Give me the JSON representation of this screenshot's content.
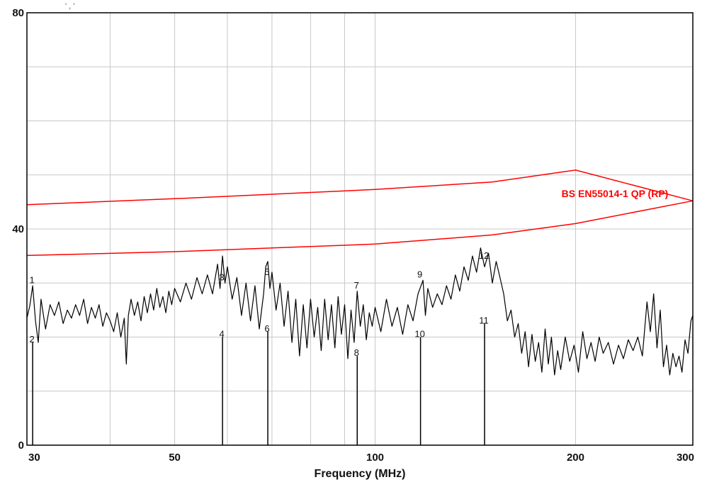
{
  "header": {
    "stray_text": "' ,  '"
  },
  "chart_data": {
    "type": "line",
    "title": "",
    "xlabel": "Frequency (MHz)",
    "ylabel": "",
    "x_scale": "log",
    "xlim": [
      30,
      300
    ],
    "ylim": [
      0,
      80
    ],
    "grid": true,
    "x_ticks": [
      30,
      50,
      100,
      200,
      300
    ],
    "y_ticks": [
      0,
      40,
      80
    ],
    "x_gridlines": [
      30,
      40,
      50,
      60,
      70,
      80,
      90,
      100,
      200,
      300
    ],
    "y_gridlines": [
      0,
      10,
      20,
      30,
      40,
      50,
      60,
      70,
      80
    ],
    "colors": {
      "trace": "#000000",
      "limit": "#ff0000",
      "grid": "#c8c8c8",
      "axis": "#000000"
    },
    "limit_line": {
      "label": "BS EN55014-1 QP (RP)",
      "upper": [
        [
          30,
          44.5
        ],
        [
          50,
          45.6
        ],
        [
          100,
          47.3
        ],
        [
          150,
          48.7
        ],
        [
          200,
          50.9
        ],
        [
          300,
          45.2
        ]
      ],
      "lower": [
        [
          30,
          35.1
        ],
        [
          50,
          35.8
        ],
        [
          100,
          37.2
        ],
        [
          150,
          38.9
        ],
        [
          200,
          41.0
        ],
        [
          300,
          45.2
        ]
      ]
    },
    "series": [
      {
        "values": [
          [
            30.0,
            23.5
          ],
          [
            30.3,
            25.8
          ],
          [
            30.6,
            29.5
          ],
          [
            30.9,
            23.0
          ],
          [
            31.2,
            19.0
          ],
          [
            31.5,
            27.0
          ],
          [
            32.0,
            21.5
          ],
          [
            32.5,
            26.0
          ],
          [
            33.0,
            24.0
          ],
          [
            33.5,
            26.5
          ],
          [
            34.0,
            22.5
          ],
          [
            34.5,
            25.0
          ],
          [
            35.0,
            23.5
          ],
          [
            35.5,
            26.0
          ],
          [
            36.0,
            24.0
          ],
          [
            36.5,
            27.0
          ],
          [
            37.0,
            22.5
          ],
          [
            37.5,
            25.5
          ],
          [
            38.0,
            23.5
          ],
          [
            38.5,
            26.0
          ],
          [
            39.0,
            22.0
          ],
          [
            39.5,
            24.5
          ],
          [
            40.0,
            23.0
          ],
          [
            40.5,
            21.0
          ],
          [
            41.0,
            24.5
          ],
          [
            41.5,
            20.0
          ],
          [
            42.0,
            23.5
          ],
          [
            42.3,
            15.0
          ],
          [
            42.6,
            24.0
          ],
          [
            43.0,
            27.0
          ],
          [
            43.5,
            24.0
          ],
          [
            44.0,
            26.5
          ],
          [
            44.5,
            23.0
          ],
          [
            45.0,
            27.5
          ],
          [
            45.5,
            24.5
          ],
          [
            46.0,
            28.0
          ],
          [
            46.5,
            25.0
          ],
          [
            47.0,
            29.0
          ],
          [
            47.5,
            25.5
          ],
          [
            48.0,
            27.5
          ],
          [
            48.5,
            24.5
          ],
          [
            49.0,
            28.5
          ],
          [
            49.5,
            26.0
          ],
          [
            50.0,
            29.0
          ],
          [
            51.0,
            26.5
          ],
          [
            52.0,
            30.0
          ],
          [
            53.0,
            27.0
          ],
          [
            54.0,
            31.0
          ],
          [
            55.0,
            28.0
          ],
          [
            56.0,
            31.5
          ],
          [
            57.0,
            28.0
          ],
          [
            58.0,
            33.5
          ],
          [
            58.5,
            29.0
          ],
          [
            59.0,
            35.0
          ],
          [
            59.5,
            30.0
          ],
          [
            60.0,
            33.0
          ],
          [
            61.0,
            27.0
          ],
          [
            62.0,
            31.0
          ],
          [
            63.0,
            24.0
          ],
          [
            64.0,
            30.0
          ],
          [
            65.0,
            23.0
          ],
          [
            66.0,
            29.5
          ],
          [
            67.0,
            21.5
          ],
          [
            68.0,
            28.0
          ],
          [
            68.5,
            33.0
          ],
          [
            69.0,
            34.0
          ],
          [
            69.5,
            29.0
          ],
          [
            70.0,
            32.0
          ],
          [
            71.0,
            25.0
          ],
          [
            72.0,
            30.0
          ],
          [
            73.0,
            22.0
          ],
          [
            74.0,
            28.5
          ],
          [
            75.0,
            19.0
          ],
          [
            76.0,
            27.0
          ],
          [
            77.0,
            16.5
          ],
          [
            78.0,
            26.0
          ],
          [
            79.0,
            18.0
          ],
          [
            80.0,
            27.0
          ],
          [
            81.0,
            20.0
          ],
          [
            82.0,
            25.5
          ],
          [
            83.0,
            17.5
          ],
          [
            84.0,
            27.0
          ],
          [
            85.0,
            19.5
          ],
          [
            86.0,
            26.0
          ],
          [
            87.0,
            18.0
          ],
          [
            88.0,
            27.5
          ],
          [
            89.0,
            20.5
          ],
          [
            90.0,
            26.0
          ],
          [
            91.0,
            16.0
          ],
          [
            92.0,
            25.0
          ],
          [
            93.0,
            19.0
          ],
          [
            94.0,
            28.5
          ],
          [
            95.0,
            22.0
          ],
          [
            96.0,
            26.0
          ],
          [
            97.0,
            19.5
          ],
          [
            98.0,
            24.5
          ],
          [
            99.0,
            22.0
          ],
          [
            100.0,
            25.5
          ],
          [
            102.0,
            21.0
          ],
          [
            104.0,
            27.0
          ],
          [
            106.0,
            22.0
          ],
          [
            108.0,
            25.5
          ],
          [
            110.0,
            20.5
          ],
          [
            112.0,
            26.0
          ],
          [
            114.0,
            23.0
          ],
          [
            116.0,
            28.0
          ],
          [
            118.0,
            30.5
          ],
          [
            119.0,
            24.0
          ],
          [
            120.0,
            29.0
          ],
          [
            122.0,
            25.5
          ],
          [
            124.0,
            28.0
          ],
          [
            126.0,
            26.0
          ],
          [
            128.0,
            29.5
          ],
          [
            130.0,
            27.0
          ],
          [
            132.0,
            31.5
          ],
          [
            134.0,
            28.5
          ],
          [
            136.0,
            33.0
          ],
          [
            138.0,
            30.5
          ],
          [
            140.0,
            35.0
          ],
          [
            142.0,
            32.0
          ],
          [
            144.0,
            36.5
          ],
          [
            146.0,
            33.0
          ],
          [
            148.0,
            35.5
          ],
          [
            150.0,
            30.0
          ],
          [
            152.0,
            34.0
          ],
          [
            154.0,
            31.0
          ],
          [
            156.0,
            28.0
          ],
          [
            158.0,
            23.0
          ],
          [
            160.0,
            25.0
          ],
          [
            162.0,
            20.0
          ],
          [
            164.0,
            22.5
          ],
          [
            166.0,
            17.0
          ],
          [
            168.0,
            21.0
          ],
          [
            170.0,
            14.5
          ],
          [
            172.0,
            20.5
          ],
          [
            174.0,
            15.5
          ],
          [
            176.0,
            19.0
          ],
          [
            178.0,
            13.5
          ],
          [
            180.0,
            21.5
          ],
          [
            182.0,
            15.0
          ],
          [
            184.0,
            20.0
          ],
          [
            186.0,
            13.0
          ],
          [
            188.0,
            17.5
          ],
          [
            190.0,
            14.0
          ],
          [
            193.0,
            20.0
          ],
          [
            196.0,
            15.5
          ],
          [
            199.0,
            18.5
          ],
          [
            202.0,
            13.5
          ],
          [
            205.0,
            21.0
          ],
          [
            208.0,
            16.0
          ],
          [
            211.0,
            19.0
          ],
          [
            214.0,
            15.5
          ],
          [
            217.0,
            20.0
          ],
          [
            220.0,
            17.0
          ],
          [
            224.0,
            19.0
          ],
          [
            228.0,
            15.0
          ],
          [
            232.0,
            18.5
          ],
          [
            236.0,
            16.0
          ],
          [
            240.0,
            19.5
          ],
          [
            244.0,
            17.5
          ],
          [
            248.0,
            20.0
          ],
          [
            252.0,
            16.5
          ],
          [
            256.0,
            26.5
          ],
          [
            259.0,
            21.0
          ],
          [
            262.0,
            28.0
          ],
          [
            265.0,
            18.0
          ],
          [
            268.0,
            25.0
          ],
          [
            271.0,
            14.5
          ],
          [
            274.0,
            18.5
          ],
          [
            277.0,
            13.0
          ],
          [
            280.0,
            17.0
          ],
          [
            283.0,
            14.5
          ],
          [
            286.0,
            16.5
          ],
          [
            289.0,
            13.5
          ],
          [
            292.0,
            19.5
          ],
          [
            295.0,
            17.0
          ],
          [
            298.0,
            23.0
          ],
          [
            300.0,
            24.0
          ]
        ]
      }
    ],
    "markers": [
      {
        "label": "1",
        "x": 30.6,
        "label_y": 30.0
      },
      {
        "label": "2",
        "x": 30.6,
        "label_y": 19.0
      },
      {
        "label": "3",
        "x": 59.0,
        "label_y": 30.5
      },
      {
        "label": "4",
        "x": 59.0,
        "label_y": 20.0
      },
      {
        "label": "5",
        "x": 69.0,
        "label_y": 31.5
      },
      {
        "label": "6",
        "x": 69.0,
        "label_y": 21.0
      },
      {
        "label": "7",
        "x": 94.0,
        "label_y": 29.0
      },
      {
        "label": "8",
        "x": 94.0,
        "label_y": 16.5
      },
      {
        "label": "9",
        "x": 117.0,
        "label_y": 31.0
      },
      {
        "label": "10",
        "x": 117.0,
        "label_y": 20.0
      },
      {
        "label": "12",
        "x": 146.0,
        "label_y": 34.5
      },
      {
        "label": "11",
        "x": 146.0,
        "label_y": 22.5
      }
    ]
  }
}
